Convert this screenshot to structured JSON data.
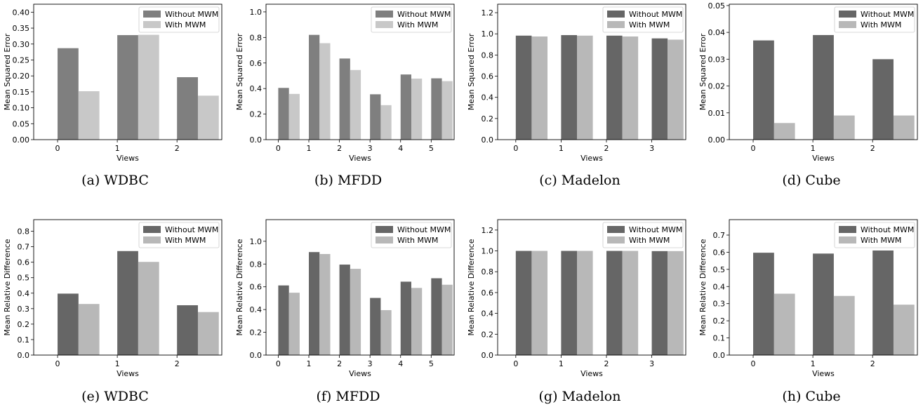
{
  "chart_data": [
    {
      "type": "bar",
      "caption": "(a) WDBC",
      "xlabel": "Views",
      "ylabel": "Mean Squared Error",
      "ylim": [
        0,
        0.425
      ],
      "yticks": [
        "0.00",
        "0.05",
        "0.10",
        "0.15",
        "0.20",
        "0.25",
        "0.30",
        "0.35",
        "0.40"
      ],
      "categories": [
        "0",
        "1",
        "2"
      ],
      "legend_position": "top-right",
      "series": [
        {
          "name": "Without MWM",
          "color": "#7f7f7f",
          "values": [
            0.287,
            0.328,
            0.196
          ]
        },
        {
          "name": "With MWM",
          "color": "#c8c8c8",
          "values": [
            0.152,
            0.329,
            0.138
          ]
        }
      ]
    },
    {
      "type": "bar",
      "caption": "(b) MFDD",
      "xlabel": "Views",
      "ylabel": "Mean Squared Error",
      "ylim": [
        0,
        1.06
      ],
      "yticks": [
        "0.0",
        "0.2",
        "0.4",
        "0.6",
        "0.8",
        "1.0"
      ],
      "categories": [
        "0",
        "1",
        "2",
        "3",
        "4",
        "5"
      ],
      "legend_position": "top-right",
      "series": [
        {
          "name": "Without MWM",
          "color": "#7f7f7f",
          "values": [
            0.405,
            0.82,
            0.635,
            0.355,
            0.51,
            0.48
          ]
        },
        {
          "name": "With MWM",
          "color": "#c8c8c8",
          "values": [
            0.358,
            0.755,
            0.545,
            0.27,
            0.478,
            0.458
          ]
        }
      ]
    },
    {
      "type": "bar",
      "caption": "(c) Madelon",
      "xlabel": "Views",
      "ylabel": "Mean Squared Error",
      "ylim": [
        0,
        1.28
      ],
      "yticks": [
        "0.0",
        "0.2",
        "0.4",
        "0.6",
        "0.8",
        "1.0",
        "1.2"
      ],
      "categories": [
        "0",
        "1",
        "2",
        "3"
      ],
      "legend_position": "top-right",
      "series": [
        {
          "name": "Without MWM",
          "color": "#666666",
          "values": [
            0.983,
            0.988,
            0.983,
            0.957
          ]
        },
        {
          "name": "With MWM",
          "color": "#b8b8b8",
          "values": [
            0.975,
            0.983,
            0.975,
            0.945
          ]
        }
      ]
    },
    {
      "type": "bar",
      "caption": "(d) Cube",
      "xlabel": "Views",
      "ylabel": "Mean Squared Error",
      "ylim": [
        0,
        0.0505
      ],
      "yticks": [
        "0.00",
        "0.01",
        "0.02",
        "0.03",
        "0.04",
        "0.05"
      ],
      "categories": [
        "0",
        "1",
        "2"
      ],
      "legend_position": "top-right",
      "series": [
        {
          "name": "Without MWM",
          "color": "#666666",
          "values": [
            0.037,
            0.039,
            0.03
          ]
        },
        {
          "name": "With MWM",
          "color": "#b8b8b8",
          "values": [
            0.0062,
            0.009,
            0.009
          ]
        }
      ]
    },
    {
      "type": "bar",
      "caption": "(e) WDBC",
      "xlabel": "Views",
      "ylabel": "Mean Relative Difference",
      "ylim": [
        0,
        0.875
      ],
      "yticks": [
        "0.0",
        "0.1",
        "0.2",
        "0.3",
        "0.4",
        "0.5",
        "0.6",
        "0.7",
        "0.8"
      ],
      "categories": [
        "0",
        "1",
        "2"
      ],
      "legend_position": "top-right",
      "series": [
        {
          "name": "Without MWM",
          "color": "#666666",
          "values": [
            0.397,
            0.672,
            0.322
          ]
        },
        {
          "name": "With MWM",
          "color": "#b8b8b8",
          "values": [
            0.33,
            0.602,
            0.278
          ]
        }
      ]
    },
    {
      "type": "bar",
      "caption": "(f) MFDD",
      "xlabel": "Views",
      "ylabel": "Mean Relative Difference",
      "ylim": [
        0,
        1.19
      ],
      "yticks": [
        "0.0",
        "0.2",
        "0.4",
        "0.6",
        "0.8",
        "1.0"
      ],
      "categories": [
        "0",
        "1",
        "2",
        "3",
        "4",
        "5"
      ],
      "legend_position": "top-right",
      "series": [
        {
          "name": "Without MWM",
          "color": "#666666",
          "values": [
            0.612,
            0.905,
            0.795,
            0.502,
            0.645,
            0.675
          ]
        },
        {
          "name": "With MWM",
          "color": "#b8b8b8",
          "values": [
            0.548,
            0.888,
            0.758,
            0.395,
            0.59,
            0.618
          ]
        }
      ]
    },
    {
      "type": "bar",
      "caption": "(g) Madelon",
      "xlabel": "Views",
      "ylabel": "Mean Relative Difference",
      "ylim": [
        0,
        1.3
      ],
      "yticks": [
        "0.0",
        "0.2",
        "0.4",
        "0.6",
        "0.8",
        "1.0",
        "1.2"
      ],
      "categories": [
        "0",
        "1",
        "2",
        "3"
      ],
      "legend_position": "top-right",
      "series": [
        {
          "name": "Without MWM",
          "color": "#666666",
          "values": [
            1.0,
            1.0,
            1.0,
            0.998
          ]
        },
        {
          "name": "With MWM",
          "color": "#b8b8b8",
          "values": [
            1.0,
            1.0,
            1.0,
            0.998
          ]
        }
      ]
    },
    {
      "type": "bar",
      "caption": "(h) Cube",
      "xlabel": "Views",
      "ylabel": "Mean Relative Difference",
      "ylim": [
        0,
        0.79
      ],
      "yticks": [
        "0.0",
        "0.1",
        "0.2",
        "0.3",
        "0.4",
        "0.5",
        "0.6",
        "0.7"
      ],
      "categories": [
        "0",
        "1",
        "2"
      ],
      "legend_position": "top-right",
      "series": [
        {
          "name": "Without MWM",
          "color": "#666666",
          "values": [
            0.597,
            0.592,
            0.61
          ]
        },
        {
          "name": "With MWM",
          "color": "#b8b8b8",
          "values": [
            0.358,
            0.345,
            0.294
          ]
        }
      ]
    }
  ]
}
